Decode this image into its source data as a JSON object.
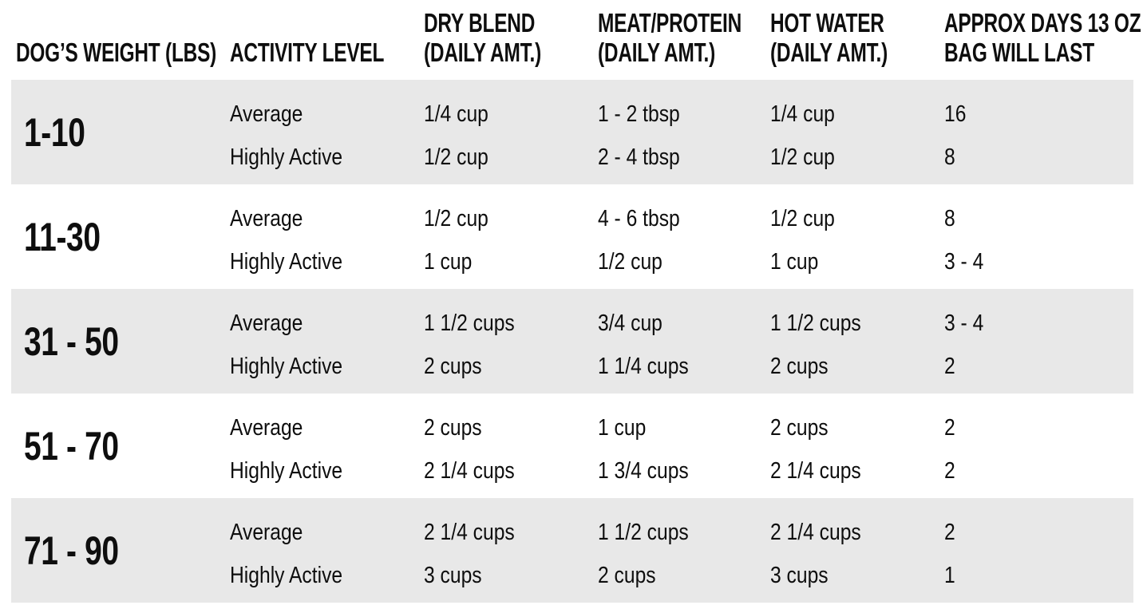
{
  "colors": {
    "background": "#ffffff",
    "stripe": "#e8e8e8",
    "text": "#0e0e0e"
  },
  "chart_data": {
    "type": "table",
    "columns": [
      {
        "line1": "",
        "line2": "DOG’S WEIGHT (LBS)"
      },
      {
        "line1": "",
        "line2": "ACTIVITY LEVEL"
      },
      {
        "line1": "DRY BLEND",
        "line2": "(DAILY AMT.)"
      },
      {
        "line1": "MEAT/PROTEIN",
        "line2": "(DAILY AMT.)"
      },
      {
        "line1": "HOT WATER",
        "line2": "(DAILY AMT.)"
      },
      {
        "line1": "APPROX DAYS 13 OZ",
        "line2": "BAG WILL LAST"
      }
    ],
    "rows": [
      {
        "weight": "1-10",
        "sub": [
          {
            "activity": "Average",
            "dry": "1/4 cup",
            "meat": "1 - 2 tbsp",
            "water": "1/4 cup",
            "days": "16"
          },
          {
            "activity": "Highly Active",
            "dry": "1/2 cup",
            "meat": "2 - 4 tbsp",
            "water": "1/2 cup",
            "days": "8"
          }
        ]
      },
      {
        "weight": "11-30",
        "sub": [
          {
            "activity": "Average",
            "dry": "1/2 cup",
            "meat": "4 - 6 tbsp",
            "water": "1/2 cup",
            "days": "8"
          },
          {
            "activity": "Highly Active",
            "dry": "1 cup",
            "meat": "1/2 cup",
            "water": "1 cup",
            "days": "3 - 4"
          }
        ]
      },
      {
        "weight": "31 - 50",
        "sub": [
          {
            "activity": "Average",
            "dry": "1 1/2 cups",
            "meat": "3/4 cup",
            "water": "1 1/2 cups",
            "days": "3 - 4"
          },
          {
            "activity": "Highly Active",
            "dry": "2 cups",
            "meat": "1 1/4 cups",
            "water": "2 cups",
            "days": "2"
          }
        ]
      },
      {
        "weight": "51 - 70",
        "sub": [
          {
            "activity": "Average",
            "dry": "2 cups",
            "meat": "1 cup",
            "water": "2 cups",
            "days": "2"
          },
          {
            "activity": "Highly Active",
            "dry": "2 1/4 cups",
            "meat": "1 3/4 cups",
            "water": "2 1/4 cups",
            "days": "2"
          }
        ]
      },
      {
        "weight": "71 - 90",
        "sub": [
          {
            "activity": "Average",
            "dry": "2 1/4 cups",
            "meat": "1 1/2 cups",
            "water": "2 1/4 cups",
            "days": "2"
          },
          {
            "activity": "Highly Active",
            "dry": "3 cups",
            "meat": "2 cups",
            "water": "3 cups",
            "days": "1"
          }
        ]
      }
    ]
  }
}
